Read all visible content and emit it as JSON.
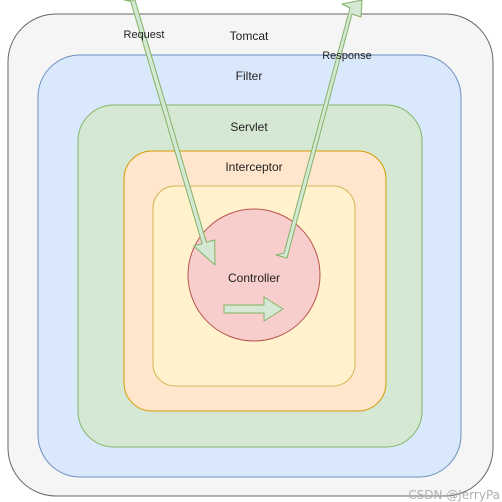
{
  "layers": [
    {
      "name": "Tomcat",
      "fill": "#f5f5f5",
      "stroke": "#666666"
    },
    {
      "name": "Filter",
      "fill": "#dae8fc",
      "stroke": "#6c8ebf"
    },
    {
      "name": "Servlet",
      "fill": "#d5e8d4",
      "stroke": "#82b366"
    },
    {
      "name": "Interceptor",
      "fill": "#ffe6cc",
      "stroke": "#d79b00"
    },
    {
      "name": "",
      "fill": "#fff2cc",
      "stroke": "#d6b656"
    }
  ],
  "controller": {
    "name": "Controller",
    "fill": "#f8cecc",
    "stroke": "#b85450"
  },
  "arrows": {
    "request": "Request",
    "response": "Response",
    "fill": "#d5e8d4",
    "stroke": "#82b366"
  },
  "watermark": "CSDN @JerryPa"
}
